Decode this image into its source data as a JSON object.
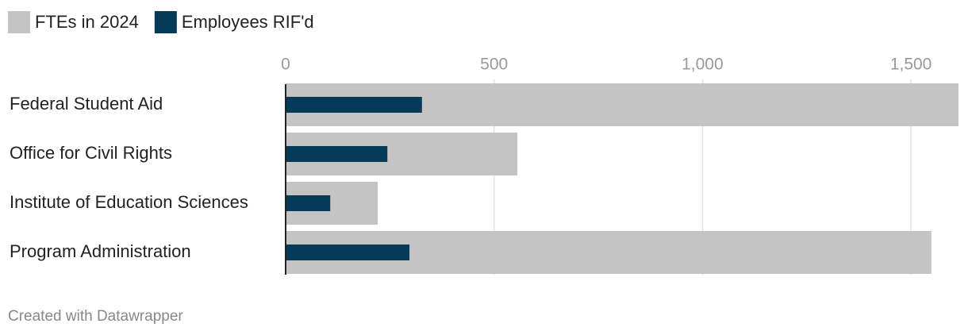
{
  "chart_data": {
    "type": "bar",
    "orientation": "horizontal",
    "overlap": true,
    "categories": [
      "Federal Student Aid",
      "Office for Civil Rights",
      "Institute of Education Sciences",
      "Program Administration"
    ],
    "series": [
      {
        "name": "FTEs in 2024",
        "color": "#c4c4c4",
        "values": [
          1614,
          556,
          221,
          1549
        ]
      },
      {
        "name": "Employees RIF'd",
        "color": "#053a59",
        "values": [
          327,
          244,
          107,
          297
        ]
      }
    ],
    "xlim": [
      0,
      1614
    ],
    "xticks": [
      0,
      500,
      {
        "value": 1000,
        "label": "1,000"
      },
      {
        "value": 1500,
        "label": "1,500"
      }
    ],
    "grid": true,
    "legend": "top-left",
    "source": "Created with Datawrapper"
  }
}
